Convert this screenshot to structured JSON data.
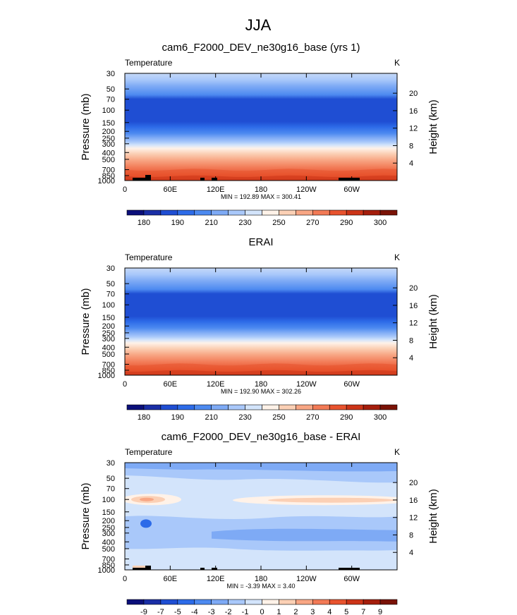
{
  "suptitle": "JJA",
  "chart_data": [
    {
      "type": "contour",
      "title": "cam6_F2000_DEV_ne30g16_base (yrs 1)",
      "left_label": "Temperature",
      "units": "K",
      "ylabel": "Pressure (mb)",
      "ylabel_right": "Height (km)",
      "yticks": [
        "30",
        "50",
        "70",
        "100",
        "150",
        "200",
        "250",
        "300",
        "400",
        "500",
        "700",
        "850",
        "1000"
      ],
      "yticks_right": [
        "20",
        "16",
        "12",
        "8",
        "4"
      ],
      "xticks": [
        "0",
        "60E",
        "120E",
        "180",
        "120W",
        "60W"
      ],
      "minmax_text": "MIN = 192.89   MAX = 300.41",
      "colorbar_labels": [
        "180",
        "190",
        "210",
        "230",
        "250",
        "270",
        "290",
        "300"
      ],
      "colorbar_colors": [
        "#0b0f7a",
        "#1a2ea6",
        "#1f4ed3",
        "#2d6be8",
        "#4d8af0",
        "#7eaaf5",
        "#a9c8fa",
        "#d3e4fb",
        "#fff2e8",
        "#fbd0b5",
        "#f8a684",
        "#f27a56",
        "#e8532e",
        "#cc3418",
        "#a51e0c",
        "#7a1206"
      ],
      "min": 192.89,
      "max": 300.41
    },
    {
      "type": "contour",
      "title": "ERAI",
      "left_label": "Temperature",
      "units": "K",
      "ylabel": "Pressure (mb)",
      "ylabel_right": "Height (km)",
      "yticks": [
        "30",
        "50",
        "70",
        "100",
        "150",
        "200",
        "250",
        "300",
        "400",
        "500",
        "700",
        "850",
        "1000"
      ],
      "yticks_right": [
        "20",
        "16",
        "12",
        "8",
        "4"
      ],
      "xticks": [
        "0",
        "60E",
        "120E",
        "180",
        "120W",
        "60W"
      ],
      "minmax_text": "MIN = 192.90   MAX = 302.26",
      "colorbar_labels": [
        "180",
        "190",
        "210",
        "230",
        "250",
        "270",
        "290",
        "300"
      ],
      "colorbar_colors": [
        "#0b0f7a",
        "#1a2ea6",
        "#1f4ed3",
        "#2d6be8",
        "#4d8af0",
        "#7eaaf5",
        "#a9c8fa",
        "#d3e4fb",
        "#fff2e8",
        "#fbd0b5",
        "#f8a684",
        "#f27a56",
        "#e8532e",
        "#cc3418",
        "#a51e0c",
        "#7a1206"
      ],
      "min": 192.9,
      "max": 302.26
    },
    {
      "type": "contour",
      "title": "cam6_F2000_DEV_ne30g16_base - ERAI",
      "left_label": "Temperature",
      "units": "K",
      "ylabel": "Pressure (mb)",
      "ylabel_right": "Height (km)",
      "yticks": [
        "30",
        "50",
        "70",
        "100",
        "150",
        "200",
        "250",
        "300",
        "400",
        "500",
        "700",
        "850",
        "1000"
      ],
      "yticks_right": [
        "20",
        "16",
        "12",
        "8",
        "4"
      ],
      "xticks": [
        "0",
        "60E",
        "120E",
        "180",
        "120W",
        "60W"
      ],
      "minmax_text": "MIN =  -3.39   MAX =   3.40",
      "colorbar_labels": [
        "-9",
        "-7",
        "-5",
        "-4",
        "-3",
        "-2",
        "-1",
        "0",
        "1",
        "2",
        "3",
        "4",
        "5",
        "7",
        "9"
      ],
      "colorbar_colors": [
        "#0b0f7a",
        "#1a2ea6",
        "#1f4ed3",
        "#2d6be8",
        "#4d8af0",
        "#7eaaf5",
        "#a9c8fa",
        "#d3e4fb",
        "#fff2e8",
        "#fbd0b5",
        "#f8a684",
        "#f27a56",
        "#e8532e",
        "#cc3418",
        "#a51e0c",
        "#7a1206"
      ],
      "min": -3.39,
      "max": 3.4
    }
  ],
  "field_colors": {
    "abs": [
      "#c5d9f8",
      "#9dbdf6",
      "#6d9cf1",
      "#2f67e6",
      "#1f4ed3",
      "#2d6be8",
      "#4d8af0",
      "#8db3f6",
      "#d6e5fb",
      "#fdebde",
      "#fbd0b5",
      "#f8a684",
      "#f27a56",
      "#e8532e"
    ],
    "diff": {
      "bg": "#d3e4fb",
      "light": "#a9c8fa",
      "mid": "#7eaaf5",
      "dark": "#4d8af0",
      "deep": "#2d6be8",
      "warm1": "#fff2e8",
      "warm2": "#fbd0b5",
      "warm3": "#f8a684"
    }
  }
}
